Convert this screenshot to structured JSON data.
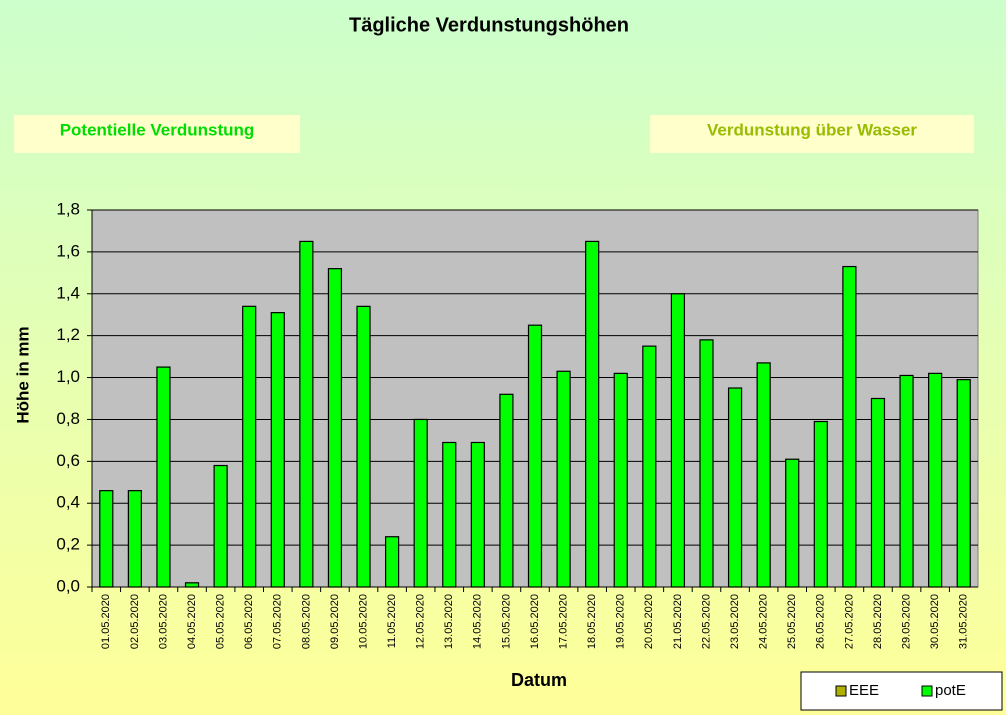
{
  "chart_data": {
    "type": "bar",
    "title": "Tägliche Verdunstungshöhen",
    "annotations": [
      "Potentielle Verdunstung",
      "Verdunstung über Wasser"
    ],
    "y_label": "Höhe in mm",
    "x_label": "Datum",
    "categories": [
      "01.05.2020",
      "02.05.2020",
      "03.05.2020",
      "04.05.2020",
      "05.05.2020",
      "06.05.2020",
      "07.05.2020",
      "08.05.2020",
      "09.05.2020",
      "10.05.2020",
      "11.05.2020",
      "12.05.2020",
      "13.05.2020",
      "14.05.2020",
      "15.05.2020",
      "16.05.2020",
      "17.05.2020",
      "18.05.2020",
      "19.05.2020",
      "20.05.2020",
      "21.05.2020",
      "22.05.2020",
      "23.05.2020",
      "24.05.2020",
      "25.05.2020",
      "26.05.2020",
      "27.05.2020",
      "28.05.2020",
      "29.05.2020",
      "30.05.2020",
      "31.05.2020"
    ],
    "series": [
      {
        "name": "EEE",
        "color": "#b0b000",
        "values": [
          null,
          null,
          null,
          null,
          null,
          null,
          null,
          null,
          null,
          null,
          null,
          null,
          null,
          null,
          null,
          null,
          null,
          null,
          null,
          null,
          null,
          null,
          null,
          null,
          null,
          null,
          null,
          null,
          null,
          null,
          null
        ]
      },
      {
        "name": "potE",
        "color": "#00ff00",
        "values": [
          0.46,
          0.46,
          1.05,
          0.02,
          0.58,
          1.34,
          1.31,
          1.65,
          1.52,
          1.34,
          0.24,
          0.8,
          0.69,
          0.69,
          0.92,
          1.25,
          1.03,
          1.65,
          1.02,
          1.15,
          1.4,
          1.18,
          0.95,
          1.07,
          0.61,
          0.79,
          1.53,
          0.9,
          1.01,
          1.02,
          0.99
        ]
      }
    ],
    "ylim": [
      0,
      1.8
    ],
    "yticks": [
      {
        "value": 0,
        "label": "0,0"
      },
      {
        "value": 0.2,
        "label": "0,2"
      },
      {
        "value": 0.4,
        "label": "0,4"
      },
      {
        "value": 0.6,
        "label": "0,6"
      },
      {
        "value": 0.8,
        "label": "0,8"
      },
      {
        "value": 1.0,
        "label": "1,0"
      },
      {
        "value": 1.2,
        "label": "1,2"
      },
      {
        "value": 1.4,
        "label": "1,4"
      },
      {
        "value": 1.6,
        "label": "1,6"
      },
      {
        "value": 1.8,
        "label": "1,8"
      }
    ],
    "grid": true,
    "legend": "bottom-right"
  }
}
